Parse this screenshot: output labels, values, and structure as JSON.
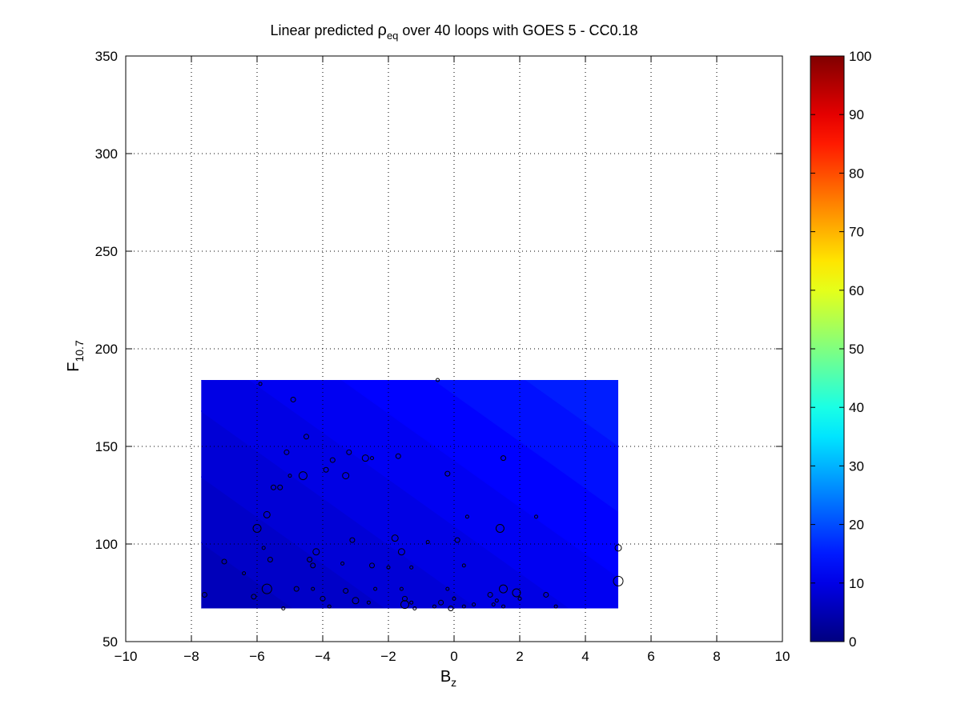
{
  "chart_data": {
    "type": "contour-scatter",
    "title": {
      "pre": "Linear predicted ",
      "symbol": "ρ",
      "sub": "eq",
      "post": " over 40 loops with GOES 5 - CC0.18"
    },
    "xlabel": {
      "main": "B",
      "sub": "z"
    },
    "ylabel": {
      "main": "F",
      "sub": "10.7"
    },
    "xlim": [
      -10,
      10
    ],
    "ylim": [
      50,
      350
    ],
    "xticks": [
      -10,
      -8,
      -6,
      -4,
      -2,
      0,
      2,
      4,
      6,
      8,
      10
    ],
    "yticks": [
      50,
      100,
      150,
      200,
      250,
      300,
      350
    ],
    "grid": true,
    "colorbar": {
      "colormap": "jet",
      "range": [
        0,
        100
      ],
      "ticks": [
        0,
        10,
        20,
        30,
        40,
        50,
        60,
        70,
        80,
        90,
        100
      ]
    },
    "contour_region": {
      "x": [
        -7.7,
        5.0
      ],
      "y": [
        67,
        184
      ],
      "value_range": [
        5,
        16
      ]
    },
    "points": [
      {
        "x": -7.6,
        "y": 74,
        "s": 3
      },
      {
        "x": -7.0,
        "y": 91,
        "s": 3
      },
      {
        "x": -6.4,
        "y": 85,
        "s": 2
      },
      {
        "x": -6.1,
        "y": 73,
        "s": 3
      },
      {
        "x": -6.0,
        "y": 108,
        "s": 5
      },
      {
        "x": -5.9,
        "y": 182,
        "s": 2
      },
      {
        "x": -5.8,
        "y": 98,
        "s": 2
      },
      {
        "x": -5.7,
        "y": 77,
        "s": 6
      },
      {
        "x": -5.7,
        "y": 115,
        "s": 4
      },
      {
        "x": -5.6,
        "y": 92,
        "s": 3
      },
      {
        "x": -5.5,
        "y": 129,
        "s": 3
      },
      {
        "x": -5.3,
        "y": 129,
        "s": 3
      },
      {
        "x": -5.2,
        "y": 67,
        "s": 2
      },
      {
        "x": -5.1,
        "y": 147,
        "s": 3
      },
      {
        "x": -5.0,
        "y": 135,
        "s": 2
      },
      {
        "x": -4.9,
        "y": 174,
        "s": 3
      },
      {
        "x": -4.8,
        "y": 77,
        "s": 3
      },
      {
        "x": -4.6,
        "y": 135,
        "s": 5
      },
      {
        "x": -4.5,
        "y": 155,
        "s": 3
      },
      {
        "x": -4.4,
        "y": 92,
        "s": 3
      },
      {
        "x": -4.3,
        "y": 77,
        "s": 2
      },
      {
        "x": -4.3,
        "y": 89,
        "s": 3
      },
      {
        "x": -4.2,
        "y": 96,
        "s": 4
      },
      {
        "x": -4.0,
        "y": 72,
        "s": 3
      },
      {
        "x": -3.9,
        "y": 138,
        "s": 3
      },
      {
        "x": -3.8,
        "y": 68,
        "s": 2
      },
      {
        "x": -3.7,
        "y": 143,
        "s": 3
      },
      {
        "x": -3.4,
        "y": 90,
        "s": 2
      },
      {
        "x": -3.3,
        "y": 76,
        "s": 3
      },
      {
        "x": -3.3,
        "y": 135,
        "s": 4
      },
      {
        "x": -3.2,
        "y": 147,
        "s": 3
      },
      {
        "x": -3.1,
        "y": 102,
        "s": 3
      },
      {
        "x": -3.0,
        "y": 71,
        "s": 4
      },
      {
        "x": -2.7,
        "y": 144,
        "s": 4
      },
      {
        "x": -2.6,
        "y": 70,
        "s": 2
      },
      {
        "x": -2.5,
        "y": 144,
        "s": 2
      },
      {
        "x": -2.5,
        "y": 89,
        "s": 3
      },
      {
        "x": -2.4,
        "y": 77,
        "s": 2
      },
      {
        "x": -2.0,
        "y": 88,
        "s": 2
      },
      {
        "x": -1.8,
        "y": 103,
        "s": 4
      },
      {
        "x": -1.7,
        "y": 145,
        "s": 3
      },
      {
        "x": -1.6,
        "y": 96,
        "s": 4
      },
      {
        "x": -1.6,
        "y": 77,
        "s": 2
      },
      {
        "x": -1.5,
        "y": 72,
        "s": 3
      },
      {
        "x": -1.5,
        "y": 69,
        "s": 5
      },
      {
        "x": -1.3,
        "y": 70,
        "s": 2
      },
      {
        "x": -1.3,
        "y": 88,
        "s": 2
      },
      {
        "x": -1.2,
        "y": 67,
        "s": 2
      },
      {
        "x": -0.8,
        "y": 101,
        "s": 2
      },
      {
        "x": -0.6,
        "y": 68,
        "s": 2
      },
      {
        "x": -0.5,
        "y": 184,
        "s": 2
      },
      {
        "x": -0.4,
        "y": 70,
        "s": 3
      },
      {
        "x": -0.2,
        "y": 77,
        "s": 2
      },
      {
        "x": -0.2,
        "y": 136,
        "s": 3
      },
      {
        "x": -0.1,
        "y": 67,
        "s": 3
      },
      {
        "x": 0.0,
        "y": 72,
        "s": 2
      },
      {
        "x": 0.1,
        "y": 102,
        "s": 3
      },
      {
        "x": 0.3,
        "y": 89,
        "s": 2
      },
      {
        "x": 0.3,
        "y": 68,
        "s": 2
      },
      {
        "x": 0.4,
        "y": 114,
        "s": 2
      },
      {
        "x": 0.6,
        "y": 69,
        "s": 2
      },
      {
        "x": 1.1,
        "y": 74,
        "s": 3
      },
      {
        "x": 1.2,
        "y": 69,
        "s": 2
      },
      {
        "x": 1.3,
        "y": 71,
        "s": 2
      },
      {
        "x": 1.4,
        "y": 108,
        "s": 5
      },
      {
        "x": 1.5,
        "y": 144,
        "s": 3
      },
      {
        "x": 1.5,
        "y": 77,
        "s": 5
      },
      {
        "x": 1.5,
        "y": 68,
        "s": 2
      },
      {
        "x": 1.9,
        "y": 75,
        "s": 5
      },
      {
        "x": 2.0,
        "y": 72,
        "s": 2
      },
      {
        "x": 2.5,
        "y": 114,
        "s": 2
      },
      {
        "x": 2.8,
        "y": 74,
        "s": 3
      },
      {
        "x": 3.1,
        "y": 68,
        "s": 2
      },
      {
        "x": 5.0,
        "y": 98,
        "s": 4
      },
      {
        "x": 5.0,
        "y": 81,
        "s": 6
      }
    ]
  }
}
